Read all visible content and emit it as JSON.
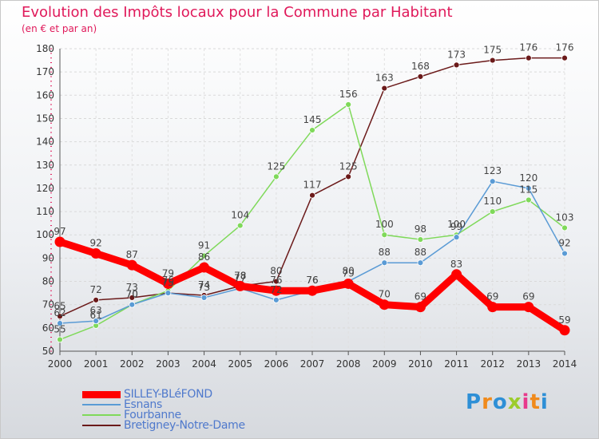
{
  "header": {
    "title": "Evolution des Impôts locaux pour la Commune par Habitant",
    "subtitle": "(en € et par an)"
  },
  "chart_data": {
    "type": "line",
    "title": "Evolution des Impôts locaux pour la Commune par Habitant",
    "subtitle": "(en € et par an)",
    "xlabel": "",
    "ylabel": "",
    "categories": [
      "2000",
      "2001",
      "2002",
      "2003",
      "2004",
      "2005",
      "2006",
      "2007",
      "2008",
      "2009",
      "2010",
      "2011",
      "2012",
      "2013",
      "2014"
    ],
    "ylim": [
      50,
      180
    ],
    "yticks": [
      50,
      60,
      70,
      80,
      90,
      100,
      110,
      120,
      130,
      140,
      150,
      160,
      170,
      180
    ],
    "grid": true,
    "legend_position": "bottom-left",
    "series": [
      {
        "name": "SILLEY-BLéFOND",
        "color": "#ff0000",
        "values": [
          97,
          92,
          87,
          79,
          86,
          78,
          76,
          76,
          79,
          70,
          69,
          83,
          69,
          69,
          59
        ],
        "labels": [
          "97",
          "92",
          "87",
          "79",
          "86",
          "78",
          "76",
          "76",
          "79",
          "70",
          "69",
          "83",
          "69",
          "69",
          "59"
        ]
      },
      {
        "name": "Esnans",
        "color": "#5a9bd5",
        "values": [
          62,
          63,
          70,
          75,
          73,
          77,
          72,
          76,
          80,
          88,
          88,
          99,
          123,
          120,
          92
        ],
        "labels": [
          "62",
          "63",
          "70",
          "75",
          "73",
          "77",
          "72",
          "76",
          "80",
          "88",
          "88",
          "99",
          "123",
          "120",
          "92"
        ]
      },
      {
        "name": "Fourbanne",
        "color": "#7fd95a",
        "values": [
          55,
          61,
          70,
          76,
          91,
          104,
          125,
          145,
          156,
          100,
          98,
          100,
          110,
          115,
          103
        ],
        "labels": [
          "55",
          "61",
          "70",
          "76",
          "91",
          "104",
          "125",
          "145",
          "156",
          "100",
          "98",
          "100",
          "110",
          "115",
          "103"
        ]
      },
      {
        "name": "Bretigney-Notre-Dame",
        "color": "#6b1a1a",
        "values": [
          65,
          72,
          73,
          75,
          74,
          78,
          80,
          117,
          125,
          163,
          168,
          173,
          175,
          176,
          176
        ],
        "labels": [
          "65",
          "72",
          "73",
          "75",
          "74",
          "78",
          "80",
          "117",
          "125",
          "163",
          "168",
          "173",
          "175",
          "176",
          "176"
        ]
      }
    ]
  },
  "legend": {
    "items": [
      {
        "label": "SILLEY-BLéFOND",
        "color": "#ff0000"
      },
      {
        "label": "Esnans",
        "color": "#5a9bd5"
      },
      {
        "label": "Fourbanne",
        "color": "#7fd95a"
      },
      {
        "label": "Bretigney-Notre-Dame",
        "color": "#6b1a1a"
      }
    ]
  },
  "logo": {
    "letters": [
      "P",
      "r",
      "o",
      "x",
      "i",
      "t",
      "i"
    ],
    "colors": [
      "#2e8fd6",
      "#f08a1c",
      "#2e8fd6",
      "#9ccc2c",
      "#e83a8c",
      "#f08a1c",
      "#2e8fd6"
    ]
  }
}
